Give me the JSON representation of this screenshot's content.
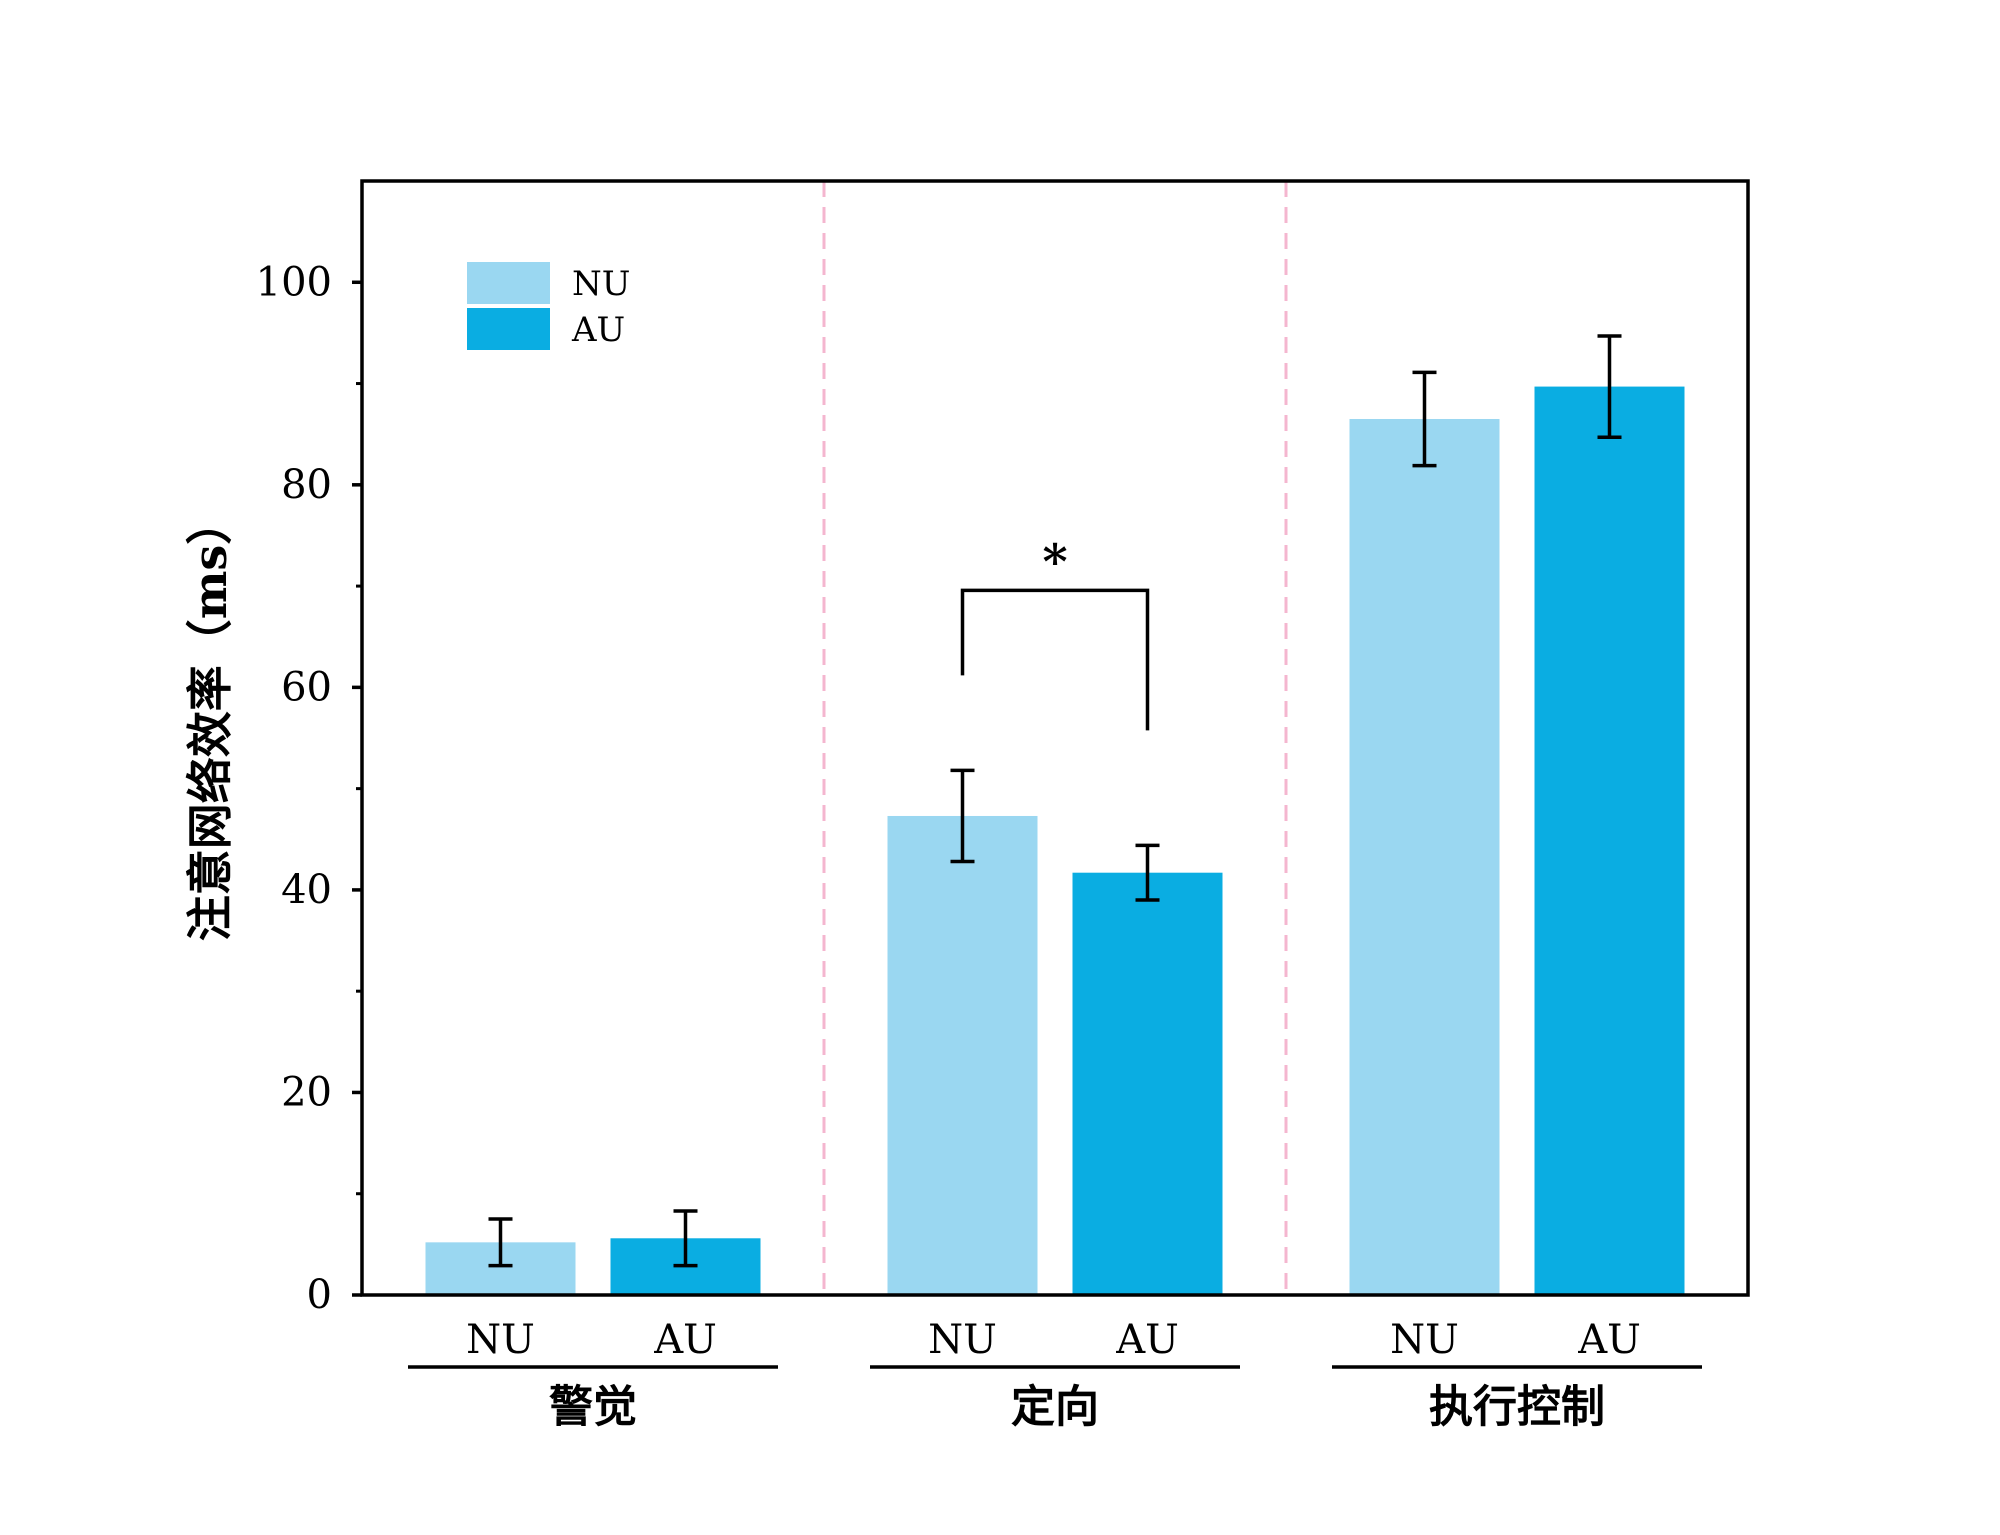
{
  "chart_data": {
    "type": "bar",
    "ylabel": "注意网络效率（ms）",
    "ylim": [
      0,
      110
    ],
    "yticks": [
      0,
      20,
      40,
      60,
      80,
      100
    ],
    "grid": false,
    "legend_position": "top-left",
    "groups": [
      "警觉",
      "定向",
      "执行控制"
    ],
    "series": [
      {
        "name": "NU",
        "color": "#9AD7F1",
        "values": [
          5.2,
          47.3,
          86.5
        ],
        "errors": [
          2.3,
          4.5,
          4.6
        ]
      },
      {
        "name": "AU",
        "color": "#0AADE2",
        "values": [
          5.6,
          41.7,
          89.7
        ],
        "errors": [
          2.7,
          2.7,
          5.0
        ]
      }
    ],
    "significance": [
      {
        "group": "定向",
        "label": "*"
      }
    ],
    "separator_color": "#F4B6CF"
  }
}
